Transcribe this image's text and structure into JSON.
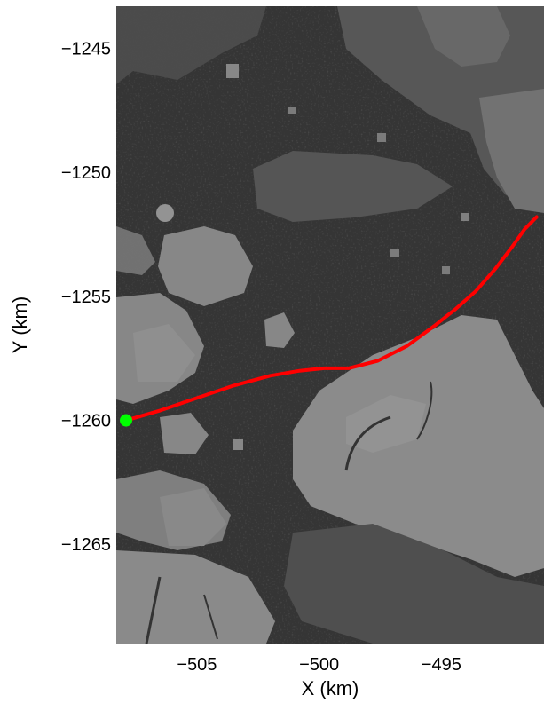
{
  "chart_data": {
    "type": "line",
    "title": "",
    "xlabel": "X (km)",
    "ylabel": "Y (km)",
    "xlim": [
      -508.3,
      -490.8
    ],
    "ylim": [
      -1269.0,
      -1243.3
    ],
    "xticks": [
      -505,
      -500,
      -495
    ],
    "xtick_labels": [
      "−505",
      "−500",
      "−495"
    ],
    "yticks": [
      -1245,
      -1250,
      -1255,
      -1260,
      -1265
    ],
    "ytick_labels": [
      "−1245",
      "−1250",
      "−1255",
      "−1260",
      "−1265"
    ],
    "background": "grayscale satellite image of sea ice floes",
    "grid": false,
    "series": [
      {
        "color": "#ff0000",
        "x": [
          -507.9,
          -506.5,
          -505.0,
          -503.5,
          -502.0,
          -500.8,
          -499.8,
          -498.8,
          -497.6,
          -496.4,
          -495.3,
          -494.4,
          -493.6,
          -492.8,
          -492.1,
          -491.6,
          -491.1
        ],
        "y": [
          -1260.0,
          -1259.6,
          -1259.1,
          -1258.6,
          -1258.2,
          -1258.0,
          -1257.9,
          -1257.9,
          -1257.6,
          -1257.0,
          -1256.2,
          -1255.5,
          -1254.8,
          -1253.9,
          -1253.0,
          -1252.3,
          -1251.8
        ]
      }
    ],
    "markers": [
      {
        "label": "start",
        "color": "#00ff00",
        "x": -507.9,
        "y": -1260.0
      }
    ]
  }
}
